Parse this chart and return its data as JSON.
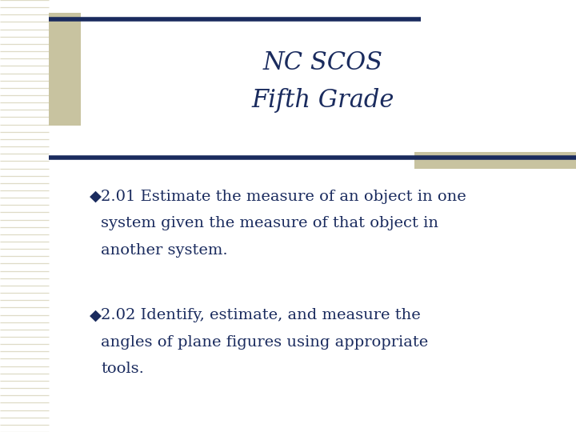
{
  "background_color": "#ffffff",
  "stripe_color": "#c8c3a0",
  "line_color": "#1a2b5e",
  "text_color": "#1a2b5e",
  "title_line1": "NC SCOS",
  "title_line2": "Fifth Grade",
  "bullet_marker": "◆",
  "bullet1_line1": "2.01 Estimate the measure of an object in one",
  "bullet1_line2": "system given the measure of that object in",
  "bullet1_line3": "another system.",
  "bullet2_line1": "2.02 Identify, estimate, and measure the",
  "bullet2_line2": "angles of plane figures using appropriate",
  "bullet2_line3": "tools.",
  "title_fontsize": 22,
  "body_fontsize": 14
}
